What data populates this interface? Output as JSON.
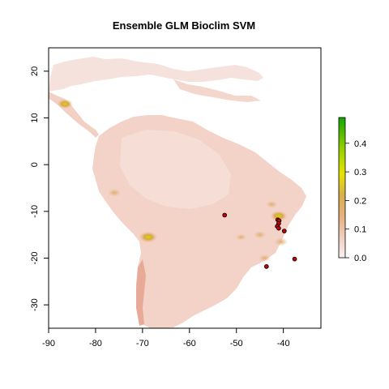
{
  "chart_data": {
    "type": "heatmap",
    "title": "Ensemble   GLM Bioclim SVM",
    "xlabel": "",
    "ylabel": "",
    "xlim": [
      -90,
      -32
    ],
    "ylim": [
      -35,
      25
    ],
    "x_ticks": [
      -90,
      -80,
      -70,
      -60,
      -50,
      -40
    ],
    "y_ticks": [
      20,
      10,
      0,
      -10,
      -20,
      -30
    ],
    "x_tick_labels": [
      "-90",
      "-80",
      "-70",
      "-60",
      "-50",
      "-40"
    ],
    "y_tick_labels": [
      "20",
      "10",
      "0",
      "-10",
      "-20",
      "-30"
    ],
    "grid": false,
    "legend_position": "right",
    "colorbar": {
      "range": [
        0,
        0.49
      ],
      "ticks": [
        0.0,
        0.1,
        0.2,
        0.3,
        0.4
      ],
      "tick_labels": [
        "0.0",
        "0.1",
        "0.2",
        "0.3",
        "0.4"
      ],
      "colors": [
        "#f8f0ee",
        "#ecc0a8",
        "#e2a66a",
        "#d6b040",
        "#e8e800",
        "#8acc00",
        "#13a800"
      ]
    },
    "background_value_color": "#f3d2c8",
    "occurrence_points": [
      {
        "x": -52.5,
        "y": -10.8
      },
      {
        "x": -41.2,
        "y": -11.8
      },
      {
        "x": -40.9,
        "y": -12.0
      },
      {
        "x": -41.0,
        "y": -12.6
      },
      {
        "x": -41.3,
        "y": -13.2
      },
      {
        "x": -41.0,
        "y": -13.6
      },
      {
        "x": -39.8,
        "y": -14.2
      },
      {
        "x": -37.6,
        "y": -20.2
      },
      {
        "x": -43.6,
        "y": -21.8
      }
    ],
    "point_fill": "#cc0000",
    "point_stroke": "#000000",
    "hotspots": [
      {
        "x": -68.8,
        "y": -15.5,
        "value": 0.38
      },
      {
        "x": -76.0,
        "y": -6.0,
        "value": 0.22
      },
      {
        "x": -86.5,
        "y": 13.0,
        "value": 0.3
      },
      {
        "x": -41.0,
        "y": -11.0,
        "value": 0.35
      },
      {
        "x": -45.0,
        "y": -15.0,
        "value": 0.2
      },
      {
        "x": -40.5,
        "y": -16.5,
        "value": 0.25
      },
      {
        "x": -44.0,
        "y": -20.0,
        "value": 0.2
      },
      {
        "x": -49.0,
        "y": -15.5,
        "value": 0.15
      },
      {
        "x": -42.5,
        "y": -8.5,
        "value": 0.18
      }
    ]
  }
}
